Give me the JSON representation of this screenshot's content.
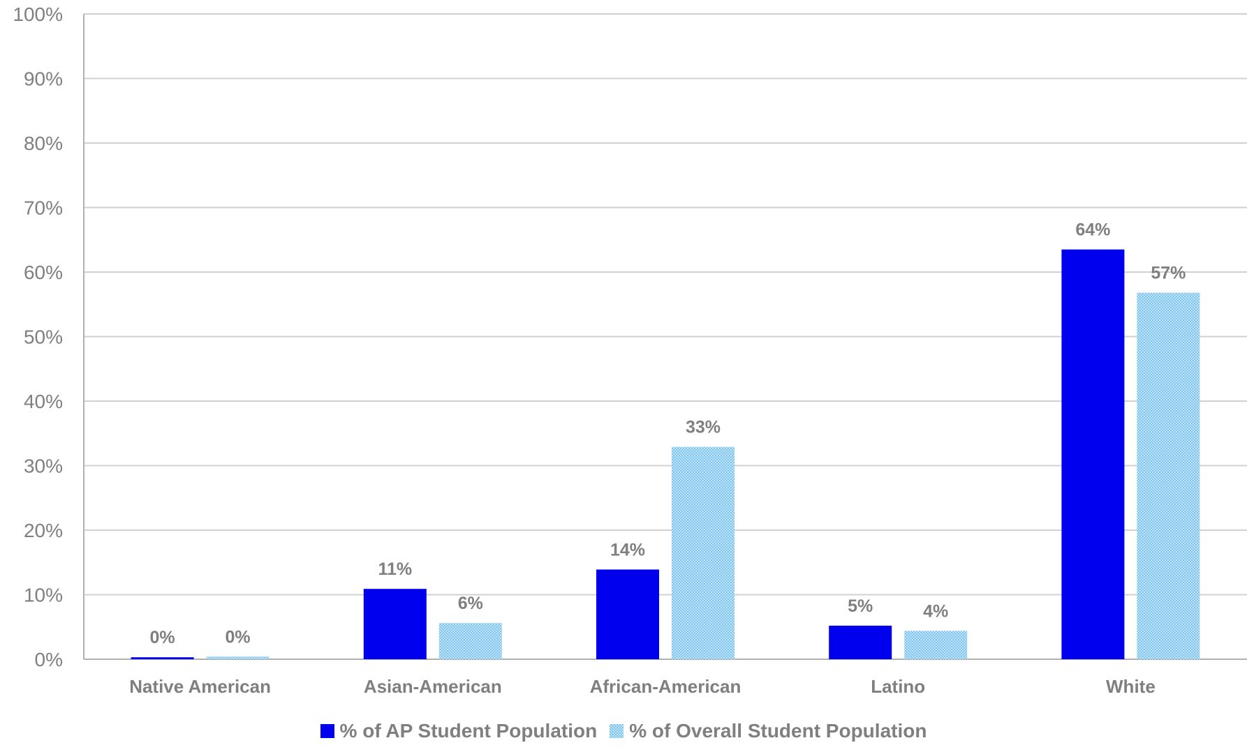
{
  "chart_data": {
    "type": "bar",
    "categories": [
      "Native American",
      "Asian-American",
      "African-American",
      "Latino",
      "White"
    ],
    "series": [
      {
        "name": "% of AP Student Population",
        "values": [
          0.3,
          10.9,
          13.9,
          5.2,
          63.5
        ],
        "labels": [
          "0%",
          "11%",
          "14%",
          "5%",
          "64%"
        ],
        "color": "#0000ee",
        "pattern": "solid"
      },
      {
        "name": "% of Overall Student Population",
        "values": [
          0.4,
          5.6,
          32.9,
          4.4,
          56.8
        ],
        "labels": [
          "0%",
          "6%",
          "33%",
          "4%",
          "57%"
        ],
        "color": "#9dd4f5",
        "pattern": "dotted"
      }
    ],
    "yticks": [
      "0%",
      "10%",
      "20%",
      "30%",
      "40%",
      "50%",
      "60%",
      "70%",
      "80%",
      "90%",
      "100%"
    ],
    "ylim": [
      0,
      100
    ],
    "grid": true,
    "legend_position": "bottom",
    "title": "",
    "xlabel": "",
    "ylabel": ""
  }
}
